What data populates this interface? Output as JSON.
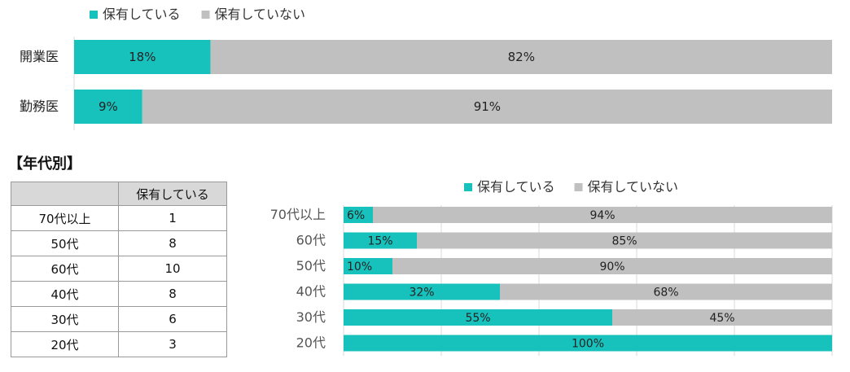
{
  "colors": {
    "has": "#17c2bd",
    "not": "#c0c0c0",
    "grid": "#d9d9d9"
  },
  "chart_data": [
    {
      "type": "bar",
      "orientation": "horizontal",
      "stacked": true,
      "categories": [
        "開業医",
        "勤務医"
      ],
      "series": [
        {
          "name": "保有している",
          "values": [
            18,
            9
          ],
          "labels": [
            "18%",
            "9%"
          ]
        },
        {
          "name": "保有していない",
          "values": [
            82,
            91
          ],
          "labels": [
            "82%",
            "91%"
          ]
        }
      ],
      "xlim": [
        0,
        100
      ],
      "legend": "top-left"
    },
    {
      "type": "bar",
      "orientation": "horizontal",
      "stacked": true,
      "categories": [
        "70代以上",
        "60代",
        "50代",
        "40代",
        "30代",
        "20代"
      ],
      "series": [
        {
          "name": "保有している",
          "values": [
            6,
            15,
            10,
            32,
            55,
            100
          ],
          "labels": [
            "6%",
            "15%",
            "10%",
            "32%",
            "55%",
            "100%"
          ]
        },
        {
          "name": "保有していない",
          "values": [
            94,
            85,
            90,
            68,
            45,
            0
          ],
          "labels": [
            "94%",
            "85%",
            "90%",
            "68%",
            "45%",
            ""
          ]
        }
      ],
      "xlim": [
        0,
        100
      ],
      "grid": true,
      "legend": "top-center"
    }
  ],
  "section_title": "【年代別】",
  "table": {
    "header": [
      "",
      "保有している"
    ],
    "rows": [
      [
        "70代以上",
        "1"
      ],
      [
        "50代",
        "8"
      ],
      [
        "60代",
        "10"
      ],
      [
        "40代",
        "8"
      ],
      [
        "30代",
        "6"
      ],
      [
        "20代",
        "3"
      ]
    ]
  }
}
